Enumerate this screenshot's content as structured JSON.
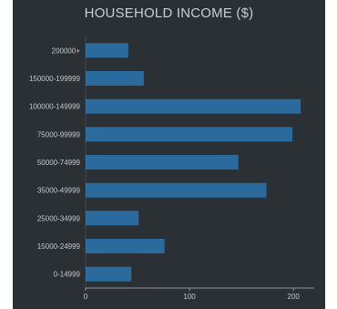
{
  "chart_data": {
    "type": "bar",
    "orientation": "horizontal",
    "title": "HOUSEHOLD INCOME ($)",
    "categories": [
      "200000+",
      "150000-199999",
      "100000-149999",
      "75000-99999",
      "50000-74999",
      "35000-49999",
      "25000-34999",
      "15000-24999",
      "0-14999"
    ],
    "values": [
      41,
      56,
      207,
      199,
      147,
      174,
      51,
      76,
      44
    ],
    "xlim": [
      0,
      220
    ],
    "xticks": [
      0,
      100,
      200
    ],
    "xtick_labels": [
      "0",
      "100",
      "200"
    ],
    "grid": false,
    "colors": {
      "bar": "#2a6a9c",
      "background": "#2b3034",
      "axis": "#8f969b",
      "text": "#c3c8cc"
    }
  }
}
